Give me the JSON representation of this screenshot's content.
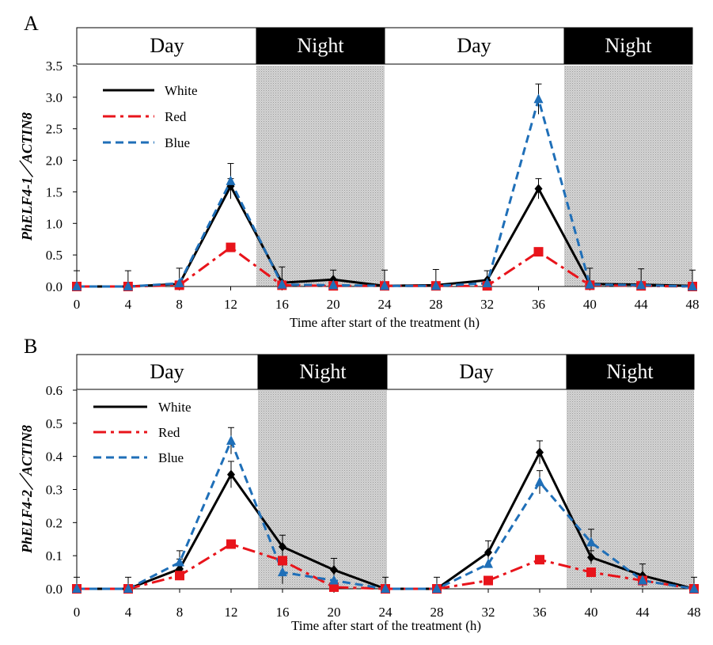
{
  "chart_data": [
    {
      "type": "line",
      "panel_label": "A",
      "ylabel": "PhELF4-1／ACTIN8",
      "xlabel": "Time after start of the treatment (h)",
      "x": [
        0,
        4,
        8,
        12,
        16,
        20,
        24,
        28,
        32,
        36,
        40,
        44,
        48
      ],
      "xlim": [
        0,
        48
      ],
      "ylim": [
        0,
        3.5
      ],
      "yticks": [
        0,
        0.5,
        1,
        1.5,
        2,
        2.5,
        3,
        3.5
      ],
      "ytick_labels": [
        "0.0",
        "0.5",
        "1.0",
        "1.5",
        "2.0",
        "2.5",
        "3.0",
        "3.5"
      ],
      "xtick_labels": [
        "0",
        "4",
        "8",
        "12",
        "16",
        "20",
        "24",
        "28",
        "32",
        "36",
        "40",
        "44",
        "48"
      ],
      "phases": [
        {
          "label": "Day",
          "start": 0,
          "end": 14,
          "dark": false
        },
        {
          "label": "Night",
          "start": 14,
          "end": 24,
          "dark": true
        },
        {
          "label": "Day",
          "start": 24,
          "end": 38,
          "dark": false
        },
        {
          "label": "Night",
          "start": 38,
          "end": 48,
          "dark": true
        }
      ],
      "legend": {
        "position": "top-left"
      },
      "series": [
        {
          "name": "White",
          "color": "#000000",
          "dash": "solid",
          "marker": "diamond",
          "values": [
            0.0,
            0.0,
            0.04,
            1.59,
            0.06,
            0.11,
            0.01,
            0.02,
            0.1,
            1.55,
            0.04,
            0.03,
            0.01
          ],
          "err": [
            0.25,
            0.25,
            0.25,
            0.12,
            0.25,
            0.15,
            0.25,
            0.25,
            0.15,
            0.16,
            0.25,
            0.25,
            0.25
          ]
        },
        {
          "name": "Red",
          "color": "#e8141b",
          "dash": "dashdot",
          "marker": "square",
          "values": [
            0.0,
            0.0,
            0.02,
            0.62,
            0.02,
            0.01,
            0.01,
            0.01,
            0.01,
            0.55,
            0.02,
            0.01,
            0.0
          ],
          "err": [
            0,
            0,
            0,
            0,
            0,
            0,
            0,
            0,
            0,
            0,
            0,
            0,
            0
          ]
        },
        {
          "name": "Blue",
          "color": "#1f6fb8",
          "dash": "dashed",
          "marker": "triangle",
          "values": [
            0.0,
            0.0,
            0.05,
            1.67,
            0.03,
            0.02,
            0.01,
            0.01,
            0.05,
            2.97,
            0.03,
            0.02,
            0.0
          ],
          "err": [
            0,
            0,
            0,
            0.28,
            0,
            0,
            0,
            0,
            0,
            0.24,
            0,
            0,
            0
          ]
        }
      ]
    },
    {
      "type": "line",
      "panel_label": "B",
      "ylabel": "PhELF4-2／ACTIN8",
      "xlabel": "Time after start of the treatment (h)",
      "x": [
        0,
        4,
        8,
        12,
        16,
        20,
        24,
        28,
        32,
        36,
        40,
        44,
        48
      ],
      "xlim": [
        0,
        48
      ],
      "ylim": [
        0,
        0.6
      ],
      "yticks": [
        0,
        0.1,
        0.2,
        0.3,
        0.4,
        0.5,
        0.6
      ],
      "ytick_labels": [
        "0.0",
        "0.1",
        "0.2",
        "0.3",
        "0.4",
        "0.5",
        "0.6"
      ],
      "xtick_labels": [
        "0",
        "4",
        "8",
        "12",
        "16",
        "20",
        "24",
        "28",
        "32",
        "36",
        "40",
        "44",
        "48"
      ],
      "phases": [
        {
          "label": "Day",
          "start": 0,
          "end": 14,
          "dark": false
        },
        {
          "label": "Night",
          "start": 14,
          "end": 24,
          "dark": true
        },
        {
          "label": "Day",
          "start": 24,
          "end": 38,
          "dark": false
        },
        {
          "label": "Night",
          "start": 38,
          "end": 48,
          "dark": true
        }
      ],
      "legend": {
        "position": "top-left"
      },
      "series": [
        {
          "name": "White",
          "color": "#000000",
          "dash": "solid",
          "marker": "diamond",
          "values": [
            0.0,
            0.0,
            0.06,
            0.345,
            0.127,
            0.057,
            0.0,
            0.0,
            0.11,
            0.412,
            0.095,
            0.04,
            0.0
          ],
          "err": [
            0.035,
            0.035,
            0.03,
            0.04,
            0.035,
            0.035,
            0.035,
            0.035,
            0.035,
            0.035,
            0.02,
            0.035,
            0.035
          ]
        },
        {
          "name": "Red",
          "color": "#e8141b",
          "dash": "dashdot",
          "marker": "square",
          "values": [
            0.0,
            0.0,
            0.04,
            0.135,
            0.085,
            0.005,
            0.0,
            0.0,
            0.025,
            0.088,
            0.05,
            0.025,
            0.0
          ],
          "err": [
            0,
            0,
            0,
            0,
            0,
            0,
            0,
            0,
            0,
            0,
            0,
            0,
            0
          ]
        },
        {
          "name": "Blue",
          "color": "#1f6fb8",
          "dash": "dashed",
          "marker": "triangle",
          "values": [
            0.0,
            0.0,
            0.08,
            0.447,
            0.05,
            0.025,
            0.0,
            0.0,
            0.075,
            0.322,
            0.14,
            0.025,
            0.0
          ],
          "err": [
            0,
            0,
            0.035,
            0.04,
            0.035,
            0,
            0,
            0,
            0,
            0.035,
            0.04,
            0,
            0
          ]
        }
      ]
    }
  ]
}
